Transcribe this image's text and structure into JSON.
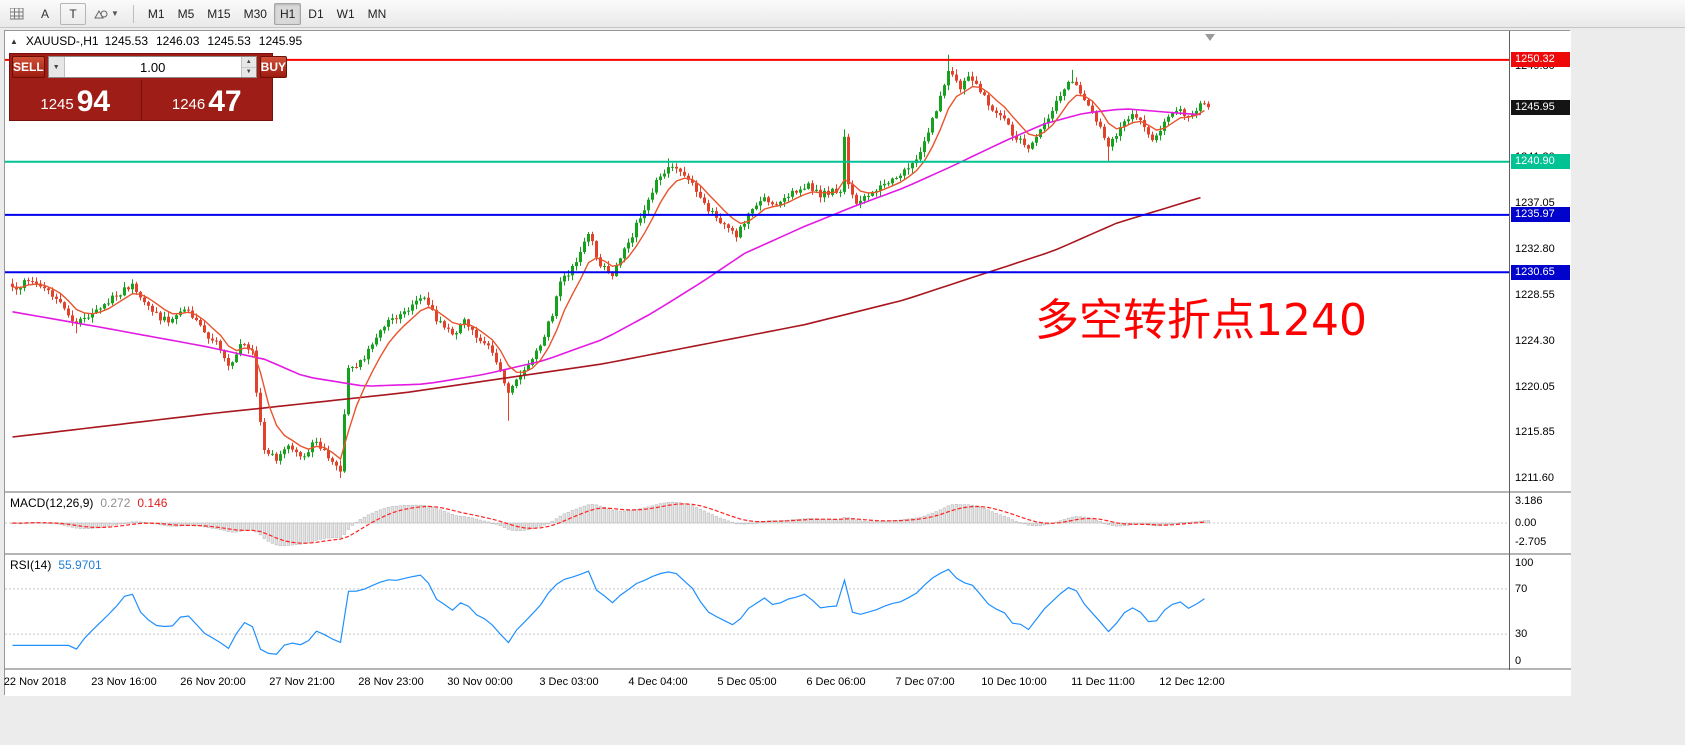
{
  "toolbar": {
    "tools": [
      {
        "name": "tick-chart-icon"
      },
      {
        "name": "cursor-tool-icon",
        "label": "A"
      },
      {
        "name": "text-tool-icon",
        "label": "T"
      },
      {
        "name": "draw-tools-icon"
      }
    ],
    "timeframes": [
      "M1",
      "M5",
      "M15",
      "M30",
      "H1",
      "D1",
      "W1",
      "MN"
    ],
    "active_timeframe": "H1"
  },
  "chart_header": {
    "symbol_period": "XAUUSD-,H1",
    "open": "1245.53",
    "high": "1246.03",
    "low": "1245.53",
    "close": "1245.95"
  },
  "trade_panel": {
    "sell_label": "SELL",
    "buy_label": "BUY",
    "lot_value": "1.00",
    "sell_price_small": "1245",
    "sell_price_big": "94",
    "buy_price_small": "1246",
    "buy_price_big": "47"
  },
  "annotation": {
    "text": "多空转折点1240",
    "color": "#ff0000"
  },
  "indicators": {
    "macd": {
      "label": "MACD(12,26,9)",
      "value_main": "0.272",
      "value_signal": "0.146",
      "axis_ticks": [
        {
          "text": "3.186",
          "value": 3.186
        },
        {
          "text": "0.00",
          "value": 0
        },
        {
          "text": "-2.705",
          "value": -2.705
        }
      ]
    },
    "rsi": {
      "label": "RSI(14)",
      "value": "55.9701",
      "axis_ticks": [
        {
          "text": "100",
          "value": 100
        },
        {
          "text": "70",
          "value": 70
        },
        {
          "text": "30",
          "value": 30
        },
        {
          "text": "0",
          "value": 0
        }
      ],
      "levels": [
        70,
        30
      ]
    }
  },
  "price_axis": {
    "ticks": [
      {
        "text": "1249.80",
        "price": 1249.8
      },
      {
        "text": "1245.55",
        "price": 1245.55
      },
      {
        "text": "1241.30",
        "price": 1241.3
      },
      {
        "text": "1237.05",
        "price": 1237.05
      },
      {
        "text": "1232.80",
        "price": 1232.8
      },
      {
        "text": "1228.55",
        "price": 1228.55
      },
      {
        "text": "1224.30",
        "price": 1224.3
      },
      {
        "text": "1220.05",
        "price": 1220.05
      },
      {
        "text": "1215.85",
        "price": 1215.85
      },
      {
        "text": "1211.60",
        "price": 1211.6
      }
    ],
    "badges": [
      {
        "text": "1250.32",
        "price": 1250.32,
        "bg": "#ee0a0a"
      },
      {
        "text": "1245.95",
        "price": 1245.95,
        "bg": "#141414"
      },
      {
        "text": "1240.90",
        "price": 1240.9,
        "bg": "#00c293"
      },
      {
        "text": "1235.97",
        "price": 1235.97,
        "bg": "#0202cd"
      },
      {
        "text": "1230.65",
        "price": 1230.65,
        "bg": "#0202cd"
      }
    ]
  },
  "chart_data": {
    "type": "candlestick",
    "symbol": "XAUUSD-",
    "timeframe": "H1",
    "current_ohlc": {
      "open": 1245.53,
      "high": 1246.03,
      "low": 1245.53,
      "close": 1245.95
    },
    "price_top": 1253.0,
    "price_bottom": 1210.4,
    "candle_count": 300,
    "seed": 7,
    "time_labels": [
      "22 Nov 2018",
      "23 Nov 16:00",
      "26 Nov 20:00",
      "27 Nov 21:00",
      "28 Nov 23:00",
      "30 Nov 00:00",
      "3 Dec 03:00",
      "4 Dec 04:00",
      "5 Dec 05:00",
      "6 Dec 06:00",
      "7 Dec 07:00",
      "10 Dec 10:00",
      "11 Dec 11:00",
      "12 Dec 12:00"
    ],
    "close_path_anchors": [
      [
        0,
        1229.3
      ],
      [
        5,
        1229.8
      ],
      [
        9,
        1229.0
      ],
      [
        13,
        1227.3
      ],
      [
        16,
        1225.9
      ],
      [
        21,
        1227.2
      ],
      [
        26,
        1228.4
      ],
      [
        30,
        1229.6
      ],
      [
        35,
        1227.0
      ],
      [
        39,
        1226.0
      ],
      [
        43,
        1227.2
      ],
      [
        48,
        1225.1
      ],
      [
        51,
        1224.3
      ],
      [
        54,
        1222.0
      ],
      [
        57,
        1224.0
      ],
      [
        60,
        1223.4
      ],
      [
        61,
        1219.5
      ],
      [
        63,
        1214.2
      ],
      [
        66,
        1213.2
      ],
      [
        69,
        1214.6
      ],
      [
        73,
        1213.6
      ],
      [
        75,
        1214.9
      ],
      [
        78,
        1214.2
      ],
      [
        80,
        1213.1
      ],
      [
        82,
        1212.2
      ],
      [
        83,
        1217.5
      ],
      [
        84,
        1221.8
      ],
      [
        88,
        1222.6
      ],
      [
        91,
        1224.6
      ],
      [
        95,
        1226.4
      ],
      [
        99,
        1227.1
      ],
      [
        103,
        1228.3
      ],
      [
        106,
        1226.1
      ],
      [
        110,
        1224.9
      ],
      [
        113,
        1226.3
      ],
      [
        116,
        1224.6
      ],
      [
        120,
        1223.2
      ],
      [
        124,
        1219.5
      ],
      [
        128,
        1221.6
      ],
      [
        131,
        1223.4
      ],
      [
        135,
        1226.6
      ],
      [
        137,
        1229.8
      ],
      [
        141,
        1231.6
      ],
      [
        144,
        1234.2
      ],
      [
        147,
        1231.2
      ],
      [
        150,
        1230.3
      ],
      [
        154,
        1233.4
      ],
      [
        158,
        1236.4
      ],
      [
        161,
        1239.2
      ],
      [
        164,
        1240.4
      ],
      [
        168,
        1239.6
      ],
      [
        171,
        1238.1
      ],
      [
        174,
        1236.3
      ],
      [
        178,
        1235.1
      ],
      [
        181,
        1233.9
      ],
      [
        184,
        1236.1
      ],
      [
        188,
        1237.6
      ],
      [
        191,
        1236.9
      ],
      [
        195,
        1238.2
      ],
      [
        199,
        1238.9
      ],
      [
        202,
        1237.6
      ],
      [
        205,
        1238.4
      ],
      [
        207,
        1238.1
      ],
      [
        208,
        1243.2
      ],
      [
        209,
        1238.8
      ],
      [
        211,
        1237.0
      ],
      [
        215,
        1238.1
      ],
      [
        219,
        1238.9
      ],
      [
        222,
        1239.6
      ],
      [
        226,
        1241.1
      ],
      [
        229,
        1243.6
      ],
      [
        232,
        1247.0
      ],
      [
        234,
        1249.3
      ],
      [
        237,
        1247.6
      ],
      [
        239,
        1248.8
      ],
      [
        241,
        1248.1
      ],
      [
        244,
        1246.1
      ],
      [
        248,
        1244.9
      ],
      [
        250,
        1243.3
      ],
      [
        254,
        1242.1
      ],
      [
        257,
        1243.9
      ],
      [
        260,
        1245.6
      ],
      [
        263,
        1247.6
      ],
      [
        265,
        1248.3
      ],
      [
        269,
        1246.1
      ],
      [
        271,
        1244.6
      ],
      [
        274,
        1242.3
      ],
      [
        277,
        1244.1
      ],
      [
        280,
        1245.3
      ],
      [
        283,
        1244.1
      ],
      [
        285,
        1242.9
      ],
      [
        288,
        1244.6
      ],
      [
        291,
        1245.6
      ],
      [
        294,
        1245.1
      ],
      [
        297,
        1246.3
      ],
      [
        299,
        1245.95
      ]
    ],
    "wick_overrides": {
      "16": {
        "l": 1225.0
      },
      "82": {
        "l": 1211.6
      },
      "124": {
        "l": 1216.9
      },
      "164": {
        "h": 1241.2
      },
      "208": {
        "h": 1243.9
      },
      "234": {
        "h": 1250.8
      },
      "265": {
        "h": 1249.4
      },
      "274": {
        "l": 1240.9
      }
    },
    "ma_fast_period": 8,
    "ma_medium_anchors": [
      [
        0,
        1227.0
      ],
      [
        23,
        1225.5
      ],
      [
        48,
        1223.8
      ],
      [
        63,
        1222.6
      ],
      [
        73,
        1221.0
      ],
      [
        88,
        1220.1
      ],
      [
        103,
        1220.3
      ],
      [
        118,
        1221.2
      ],
      [
        133,
        1222.5
      ],
      [
        148,
        1224.5
      ],
      [
        160,
        1226.9
      ],
      [
        173,
        1229.9
      ],
      [
        183,
        1232.4
      ],
      [
        198,
        1234.9
      ],
      [
        210,
        1236.7
      ],
      [
        223,
        1238.5
      ],
      [
        235,
        1240.5
      ],
      [
        248,
        1242.8
      ],
      [
        258,
        1244.4
      ],
      [
        268,
        1245.4
      ],
      [
        278,
        1245.8
      ],
      [
        288,
        1245.5
      ],
      [
        299,
        1245.2
      ]
    ],
    "ma_slow_anchors": [
      [
        0,
        1215.4
      ],
      [
        48,
        1217.5
      ],
      [
        98,
        1219.5
      ],
      [
        148,
        1222.2
      ],
      [
        198,
        1225.8
      ],
      [
        223,
        1228.1
      ],
      [
        241,
        1230.3
      ],
      [
        260,
        1232.6
      ],
      [
        276,
        1235.2
      ],
      [
        299,
        1237.8
      ]
    ],
    "hlines": [
      {
        "price": 1250.32,
        "color": "#ff0000",
        "width": 2
      },
      {
        "price": 1240.9,
        "color": "#00c293",
        "width": 2
      },
      {
        "price": 1235.97,
        "color": "#0000ee",
        "width": 2
      },
      {
        "price": 1230.65,
        "color": "#0000ee",
        "width": 2
      }
    ],
    "macd_params": [
      12,
      26,
      9
    ],
    "rsi_period": 14,
    "colors": {
      "up": "#16a11e",
      "down": "#e2422c",
      "ma_fast": "#e8542e",
      "ma_medium": "#e31ae3",
      "ma_slow": "#a8161f",
      "macd_hist_fill": "#e3e3e3",
      "macd_hist_stroke": "#b2b2b2",
      "macd_signal": "#ff2222",
      "rsi_line": "#2090ff",
      "level_line": "#c8c8c8"
    }
  }
}
